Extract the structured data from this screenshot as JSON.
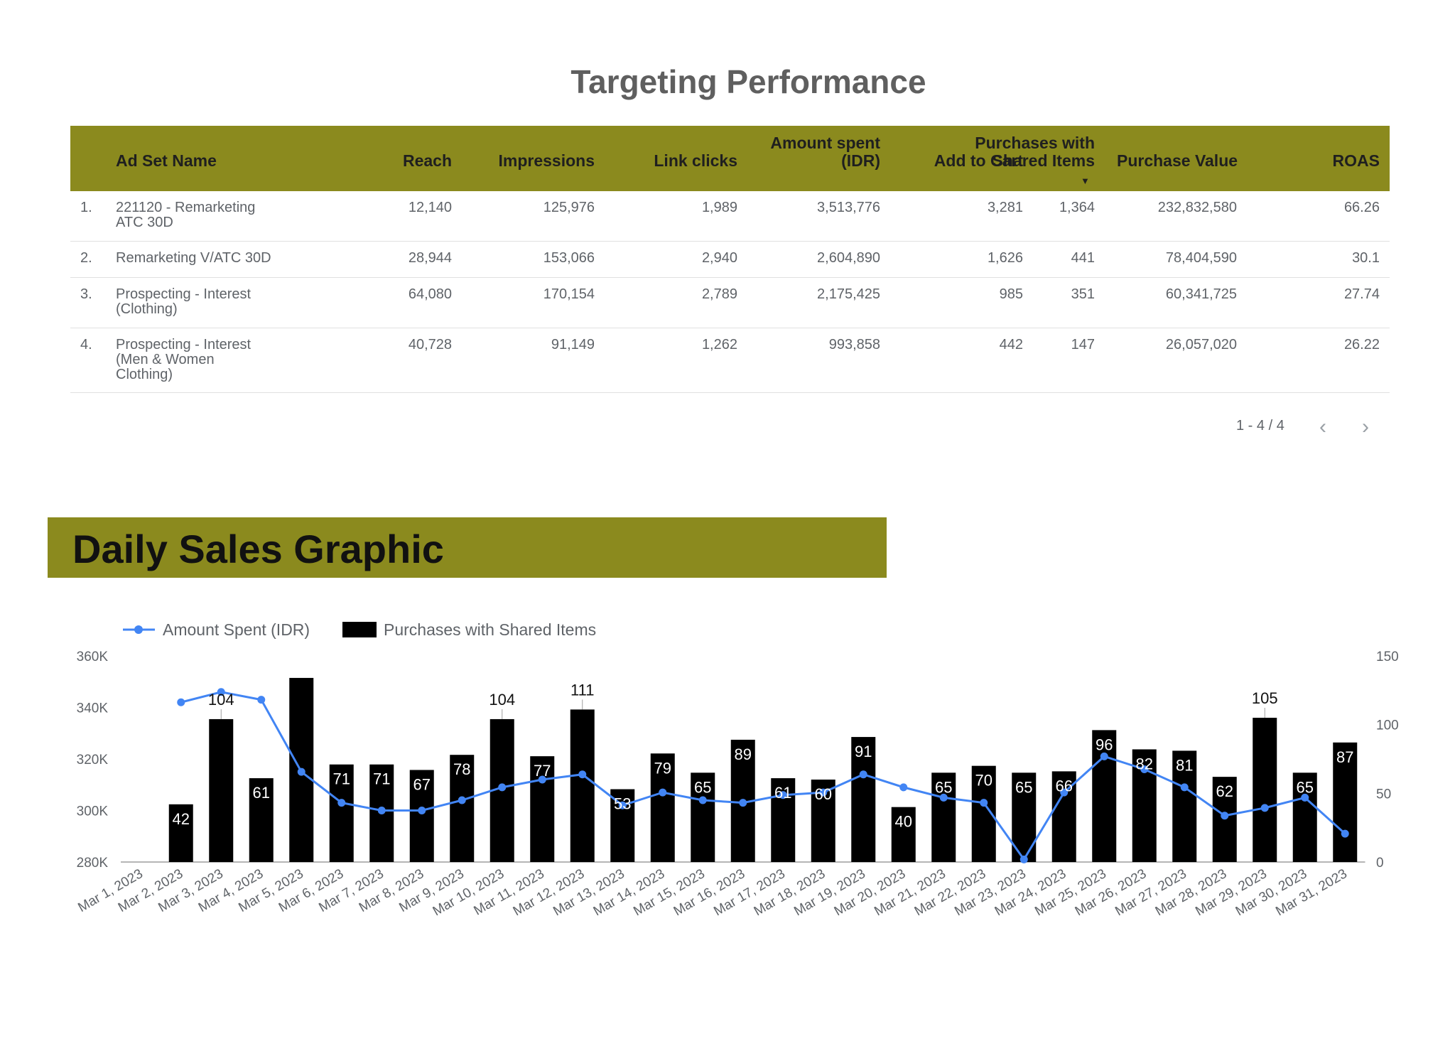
{
  "table": {
    "title": "Targeting Performance",
    "columns": {
      "ad_set_name": "Ad Set Name",
      "reach": "Reach",
      "impressions": "Impressions",
      "link_clicks": "Link clicks",
      "amount_spent_1": "Amount spent",
      "amount_spent_2": "(IDR)",
      "add_to_cart": "Add to Cart",
      "purchases_1": "Purchases with",
      "purchases_2": "Shared Items",
      "purchase_value": "Purchase Value",
      "roas": "ROAS"
    },
    "sort_icon": "caret-down-icon",
    "rows": [
      {
        "index": "1.",
        "name_lines": [
          "221120 - Remarketing",
          "ATC 30D"
        ],
        "reach": "12,140",
        "impressions": "125,976",
        "link_clicks": "1,989",
        "amount_spent": "3,513,776",
        "add_to_cart": "3,281",
        "purchases": "1,364",
        "purchase_value": "232,832,580",
        "roas": "66.26"
      },
      {
        "index": "2.",
        "name_lines": [
          "Remarketing V/ATC 30D"
        ],
        "reach": "28,944",
        "impressions": "153,066",
        "link_clicks": "2,940",
        "amount_spent": "2,604,890",
        "add_to_cart": "1,626",
        "purchases": "441",
        "purchase_value": "78,404,590",
        "roas": "30.1"
      },
      {
        "index": "3.",
        "name_lines": [
          "Prospecting - Interest",
          "(Clothing)"
        ],
        "reach": "64,080",
        "impressions": "170,154",
        "link_clicks": "2,789",
        "amount_spent": "2,175,425",
        "add_to_cart": "985",
        "purchases": "351",
        "purchase_value": "60,341,725",
        "roas": "27.74"
      },
      {
        "index": "4.",
        "name_lines": [
          "Prospecting - Interest",
          "(Men & Women",
          "Clothing)"
        ],
        "reach": "40,728",
        "impressions": "91,149",
        "link_clicks": "1,262",
        "amount_spent": "993,858",
        "add_to_cart": "442",
        "purchases": "147",
        "purchase_value": "26,057,020",
        "roas": "26.22"
      }
    ],
    "pagination": "1 - 4 / 4",
    "prev_icon": "chevron-left-icon",
    "next_icon": "chevron-right-icon"
  },
  "section_title": "Daily Sales Graphic",
  "colors": {
    "header_bg": "#8b8a1e",
    "line": "#4285f4",
    "bar": "#000000"
  },
  "chart_data": {
    "type": "bar",
    "categories": [
      "Mar 1, 2023",
      "Mar 2, 2023",
      "Mar 3, 2023",
      "Mar 4, 2023",
      "Mar 5, 2023",
      "Mar 6, 2023",
      "Mar 7, 2023",
      "Mar 8, 2023",
      "Mar 9, 2023",
      "Mar 10, 2023",
      "Mar 11, 2023",
      "Mar 12, 2023",
      "Mar 13, 2023",
      "Mar 14, 2023",
      "Mar 15, 2023",
      "Mar 16, 2023",
      "Mar 17, 2023",
      "Mar 18, 2023",
      "Mar 19, 2023",
      "Mar 20, 2023",
      "Mar 21, 2023",
      "Mar 22, 2023",
      "Mar 23, 2023",
      "Mar 24, 2023",
      "Mar 25, 2023",
      "Mar 26, 2023",
      "Mar 27, 2023",
      "Mar 28, 2023",
      "Mar 29, 2023",
      "Mar 30, 2023",
      "Mar 31, 2023"
    ],
    "series": [
      {
        "name": "Amount Spent (IDR)",
        "type": "line",
        "axis": "left",
        "values": [
          null,
          342000,
          346000,
          343000,
          315000,
          303000,
          300000,
          300000,
          304000,
          309000,
          312000,
          314000,
          302000,
          307000,
          304000,
          303000,
          306000,
          307000,
          314000,
          309000,
          305000,
          303000,
          281000,
          307000,
          321000,
          316000,
          309000,
          298000,
          301000,
          305000,
          291000
        ]
      },
      {
        "name": "Purchases with Shared Items",
        "type": "bar",
        "axis": "right",
        "values": [
          null,
          42,
          104,
          61,
          134,
          71,
          71,
          67,
          78,
          104,
          77,
          111,
          53,
          79,
          65,
          89,
          61,
          60,
          91,
          40,
          65,
          70,
          65,
          66,
          96,
          82,
          81,
          62,
          105,
          65,
          87
        ],
        "labels": [
          "",
          "42",
          "104",
          "61",
          "",
          "71",
          "71",
          "67",
          "78",
          "104",
          "77",
          "111",
          "53",
          "79",
          "65",
          "89",
          "61",
          "60",
          "91",
          "40",
          "65",
          "70",
          "65",
          "66",
          "96",
          "82",
          "81",
          "62",
          "105",
          "65",
          "87"
        ]
      }
    ],
    "y_left": {
      "min": 280000,
      "max": 360000,
      "ticks": [
        280000,
        300000,
        320000,
        340000,
        360000
      ],
      "tick_labels": [
        "280K",
        "300K",
        "320K",
        "340K",
        "360K"
      ]
    },
    "y_right": {
      "min": 0,
      "max": 150,
      "ticks": [
        0,
        50,
        100,
        150
      ],
      "tick_labels": [
        "0",
        "50",
        "100",
        "150"
      ]
    },
    "legend_position": "top-left",
    "legend_icon_line": "line-dot-legend-icon",
    "legend_icon_bar": "bar-legend-icon",
    "grid": false
  }
}
